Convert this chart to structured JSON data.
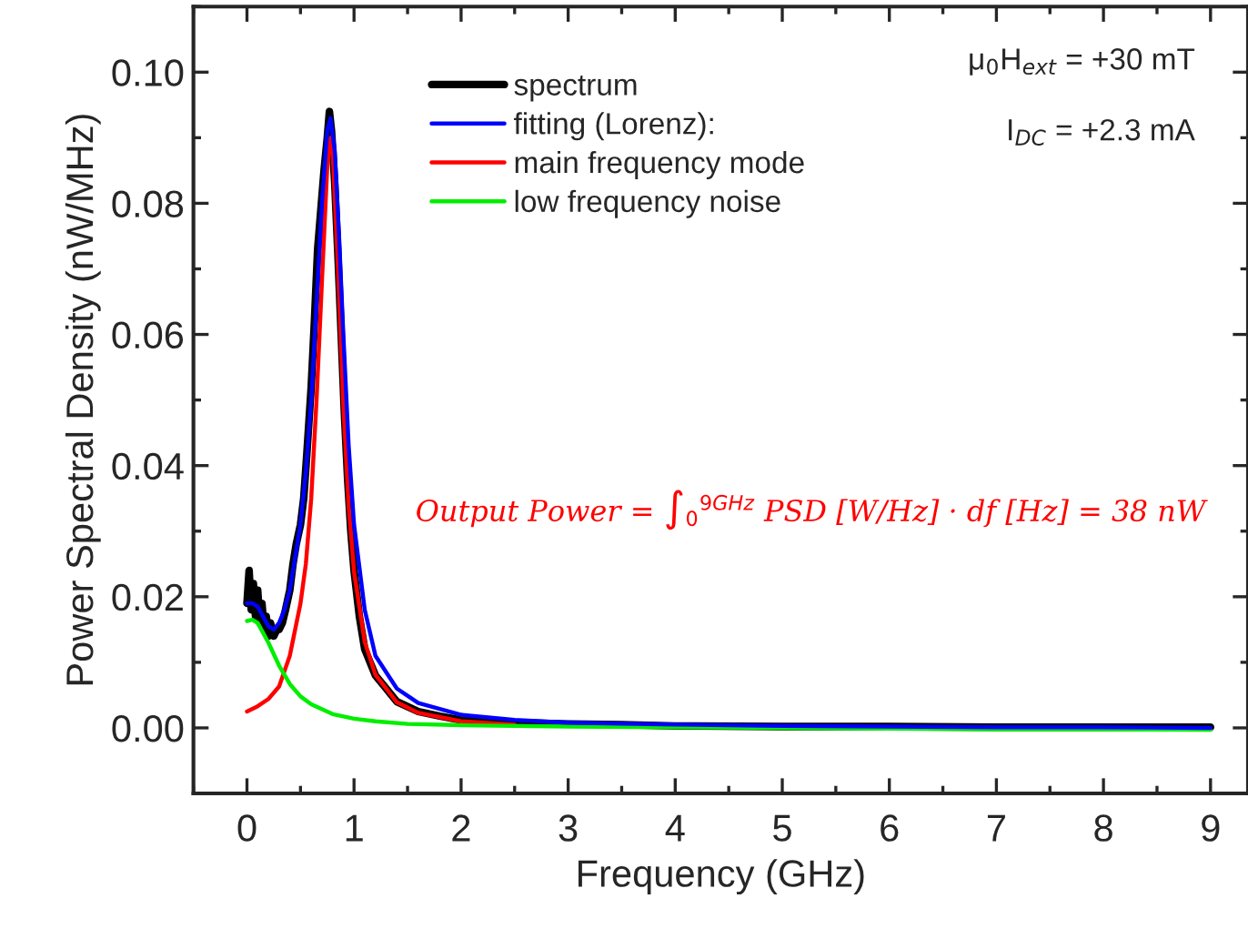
{
  "chart_data": {
    "type": "line",
    "xlabel": "Frequency (GHz)",
    "ylabel": "Power Spectral Density (nW/MHz)",
    "xlim": [
      -0.5,
      9.35
    ],
    "ylim": [
      -0.01,
      0.11
    ],
    "xticks": [
      0,
      1,
      2,
      3,
      4,
      5,
      6,
      7,
      8,
      9
    ],
    "yticks": [
      {
        "value": 0.0,
        "label": "0.00"
      },
      {
        "value": 0.02,
        "label": "0.02"
      },
      {
        "value": 0.04,
        "label": "0.04"
      },
      {
        "value": 0.06,
        "label": "0.06"
      },
      {
        "value": 0.08,
        "label": "0.08"
      },
      {
        "value": 0.1,
        "label": "0.10"
      }
    ],
    "grid": false,
    "legend": "top",
    "line_style": "solid",
    "marker": "none",
    "series": [
      {
        "name": "spectrum",
        "color": "#000000",
        "x": [
          0.0,
          0.02,
          0.04,
          0.06,
          0.08,
          0.1,
          0.12,
          0.14,
          0.16,
          0.18,
          0.2,
          0.22,
          0.25,
          0.28,
          0.3,
          0.33,
          0.36,
          0.4,
          0.43,
          0.46,
          0.5,
          0.53,
          0.56,
          0.6,
          0.63,
          0.66,
          0.69,
          0.72,
          0.75,
          0.77,
          0.79,
          0.82,
          0.85,
          0.88,
          0.91,
          0.94,
          0.97,
          1.0,
          1.05,
          1.1,
          1.2,
          1.3,
          1.4,
          1.6,
          1.8,
          2.0,
          2.5,
          3,
          3.5,
          4,
          5,
          6,
          7,
          8,
          9
        ],
        "values": [
          0.019,
          0.024,
          0.018,
          0.022,
          0.017,
          0.021,
          0.016,
          0.019,
          0.015,
          0.017,
          0.014,
          0.016,
          0.014,
          0.015,
          0.015,
          0.016,
          0.018,
          0.021,
          0.025,
          0.028,
          0.031,
          0.035,
          0.042,
          0.052,
          0.062,
          0.073,
          0.079,
          0.085,
          0.09,
          0.094,
          0.091,
          0.083,
          0.072,
          0.06,
          0.048,
          0.038,
          0.03,
          0.024,
          0.017,
          0.012,
          0.008,
          0.006,
          0.004,
          0.0025,
          0.0018,
          0.0012,
          0.0008,
          0.0006,
          0.0005,
          0.0003,
          0.0002,
          0.0002,
          0.0001,
          0.0001,
          0.0001
        ]
      },
      {
        "name": "fitting (Lorenz):",
        "color": "#0000ff",
        "x": [
          0,
          0.05,
          0.1,
          0.15,
          0.2,
          0.25,
          0.3,
          0.35,
          0.4,
          0.45,
          0.5,
          0.55,
          0.6,
          0.65,
          0.7,
          0.75,
          0.78,
          0.82,
          0.86,
          0.9,
          0.95,
          1.0,
          1.1,
          1.2,
          1.4,
          1.6,
          2.0,
          2.5,
          3,
          4,
          5,
          6,
          7,
          8,
          9
        ],
        "values": [
          0.019,
          0.019,
          0.0185,
          0.017,
          0.0155,
          0.015,
          0.016,
          0.018,
          0.021,
          0.026,
          0.031,
          0.039,
          0.05,
          0.065,
          0.08,
          0.091,
          0.093,
          0.088,
          0.075,
          0.06,
          0.043,
          0.031,
          0.018,
          0.011,
          0.006,
          0.0038,
          0.002,
          0.0012,
          0.0008,
          0.0005,
          0.0003,
          0.0002,
          0.0001,
          0.0001,
          0.0
        ]
      },
      {
        "name": "main frequency mode",
        "color": "#ff0000",
        "x": [
          0,
          0.1,
          0.2,
          0.3,
          0.4,
          0.5,
          0.55,
          0.6,
          0.65,
          0.7,
          0.75,
          0.78,
          0.8,
          0.85,
          0.9,
          0.95,
          1.0,
          1.1,
          1.2,
          1.4,
          1.6,
          2.0,
          2.5
        ],
        "values": [
          0.0025,
          0.0033,
          0.0044,
          0.0063,
          0.011,
          0.019,
          0.025,
          0.035,
          0.05,
          0.068,
          0.0856,
          0.09,
          0.088,
          0.0703,
          0.0493,
          0.0338,
          0.0238,
          0.0131,
          0.0081,
          0.0039,
          0.0023,
          0.001,
          0.0005
        ]
      },
      {
        "name": "low frequency noise",
        "color": "#00ee00",
        "x": [
          0,
          0.05,
          0.1,
          0.2,
          0.3,
          0.4,
          0.5,
          0.6,
          0.8,
          1.0,
          1.2,
          1.5,
          2,
          3,
          4,
          5,
          6,
          7,
          8,
          9
        ],
        "values": [
          0.0163,
          0.0165,
          0.016,
          0.013,
          0.0095,
          0.0067,
          0.0048,
          0.0036,
          0.0021,
          0.0014,
          0.001,
          0.0006,
          0.0004,
          0.0002,
          0.0001,
          0.0,
          -0.0001,
          -0.0002,
          -0.0002,
          -0.0003
        ]
      }
    ],
    "annotations": [
      "μ$_{0}$H$_{ext}$ = +30 mT",
      "I$_{DC}$ = +2.3 mA",
      "Output Power = ∫$_{0}$$^{9GHz}$ PSD [W/Hz] · df [Hz] = 38 nW"
    ]
  }
}
